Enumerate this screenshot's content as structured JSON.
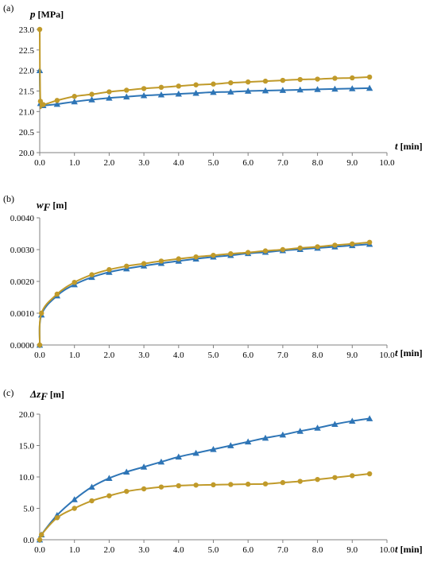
{
  "colors": {
    "series_tri": "#2E75B6",
    "series_dot": "#C09A2A",
    "axis": "#808080"
  },
  "chart_data": [
    {
      "type": "line",
      "panel_label": "(a)",
      "ylabel_var": "p",
      "ylabel_sub": "",
      "ylabel_unit": "[MPa]",
      "xlabel_var": "t",
      "xlabel_unit": "[min]",
      "ylim": [
        20.0,
        23.0
      ],
      "yticks": [
        "20.0",
        "20.5",
        "21.0",
        "21.5",
        "22.0",
        "22.5",
        "23.0"
      ],
      "xlim": [
        0,
        10
      ],
      "xticks": [
        "0.0",
        "1.0",
        "2.0",
        "3.0",
        "4.0",
        "5.0",
        "6.0",
        "7.0",
        "8.0",
        "9.0",
        "10.0"
      ],
      "series": [
        {
          "marker": "triangle",
          "x": [
            0,
            0.02,
            0.1,
            0.5,
            1.0,
            1.5,
            2.0,
            2.5,
            3.0,
            3.5,
            4.0,
            4.5,
            5.0,
            5.5,
            6.0,
            6.5,
            7.0,
            7.5,
            8.0,
            8.5,
            9.0,
            9.5
          ],
          "y": [
            22.0,
            21.2,
            21.15,
            21.18,
            21.24,
            21.29,
            21.33,
            21.36,
            21.39,
            21.41,
            21.43,
            21.45,
            21.47,
            21.48,
            21.5,
            21.51,
            21.52,
            21.53,
            21.54,
            21.55,
            21.56,
            21.57
          ]
        },
        {
          "marker": "circle",
          "x": [
            0,
            0.02,
            0.1,
            0.5,
            1.0,
            1.5,
            2.0,
            2.5,
            3.0,
            3.5,
            4.0,
            4.5,
            5.0,
            5.5,
            6.0,
            6.5,
            7.0,
            7.5,
            8.0,
            8.5,
            9.0,
            9.5
          ],
          "y": [
            23.0,
            21.25,
            21.17,
            21.27,
            21.37,
            21.42,
            21.48,
            21.52,
            21.56,
            21.59,
            21.62,
            21.65,
            21.67,
            21.7,
            21.72,
            21.74,
            21.76,
            21.78,
            21.79,
            21.81,
            21.82,
            21.84
          ]
        }
      ]
    },
    {
      "type": "line",
      "panel_label": "(b)",
      "ylabel_var": "w",
      "ylabel_sub": "F",
      "ylabel_unit": "[m]",
      "xlabel_var": "t",
      "xlabel_unit": "[min]",
      "ylim": [
        0,
        0.004
      ],
      "yticks": [
        "0.0000",
        "0.0010",
        "0.0020",
        "0.0030",
        "0.0040"
      ],
      "xlim": [
        0,
        10
      ],
      "xticks": [
        "0.0",
        "1.0",
        "2.0",
        "3.0",
        "4.0",
        "5.0",
        "6.0",
        "7.0",
        "8.0",
        "9.0",
        "10.0"
      ],
      "series": [
        {
          "marker": "triangle",
          "x": [
            0,
            0.05,
            0.5,
            1.0,
            1.5,
            2.0,
            2.5,
            3.0,
            3.5,
            4.0,
            4.5,
            5.0,
            5.5,
            6.0,
            6.5,
            7.0,
            7.5,
            8.0,
            8.5,
            9.0,
            9.5
          ],
          "y": [
            0,
            0.00095,
            0.00155,
            0.0019,
            0.00213,
            0.00229,
            0.0024,
            0.00249,
            0.00257,
            0.00264,
            0.00271,
            0.00277,
            0.00282,
            0.00288,
            0.00292,
            0.00297,
            0.00301,
            0.00305,
            0.00309,
            0.00313,
            0.00317
          ]
        },
        {
          "marker": "circle",
          "x": [
            0,
            0.05,
            0.5,
            1.0,
            1.5,
            2.0,
            2.5,
            3.0,
            3.5,
            4.0,
            4.5,
            5.0,
            5.5,
            6.0,
            6.5,
            7.0,
            7.5,
            8.0,
            8.5,
            9.0,
            9.5
          ],
          "y": [
            0,
            0.001,
            0.0016,
            0.00197,
            0.00221,
            0.00237,
            0.00248,
            0.00256,
            0.00264,
            0.00271,
            0.00277,
            0.00282,
            0.00287,
            0.00291,
            0.00296,
            0.003,
            0.00305,
            0.00309,
            0.00314,
            0.00318,
            0.00323
          ]
        }
      ]
    },
    {
      "type": "line",
      "panel_label": "(c)",
      "ylabel_var": "Δz",
      "ylabel_sub": "F",
      "ylabel_unit": "[m]",
      "xlabel_var": "t",
      "xlabel_unit": "[min]",
      "ylim": [
        0,
        20.0
      ],
      "yticks": [
        "0.0",
        "5.0",
        "10.0",
        "15.0",
        "20.0"
      ],
      "xlim": [
        0,
        10
      ],
      "xticks": [
        "0.0",
        "1.0",
        "2.0",
        "3.0",
        "4.0",
        "5.0",
        "6.0",
        "7.0",
        "8.0",
        "9.0",
        "10.0"
      ],
      "series": [
        {
          "marker": "triangle",
          "x": [
            0,
            0.05,
            0.5,
            1.0,
            1.5,
            2.0,
            2.5,
            3.0,
            3.5,
            4.0,
            4.5,
            5.0,
            5.5,
            6.0,
            6.5,
            7.0,
            7.5,
            8.0,
            8.5,
            9.0,
            9.5
          ],
          "y": [
            0,
            0.8,
            3.9,
            6.4,
            8.4,
            9.8,
            10.8,
            11.6,
            12.4,
            13.2,
            13.8,
            14.4,
            15.0,
            15.6,
            16.2,
            16.7,
            17.3,
            17.8,
            18.4,
            18.9,
            19.3
          ]
        },
        {
          "marker": "circle",
          "x": [
            0,
            0.05,
            0.5,
            1.0,
            1.5,
            2.0,
            2.5,
            3.0,
            3.5,
            4.0,
            4.5,
            5.0,
            5.5,
            6.0,
            6.5,
            7.0,
            7.5,
            8.0,
            8.5,
            9.0,
            9.5
          ],
          "y": [
            0,
            0.8,
            3.5,
            5.0,
            6.2,
            7.0,
            7.7,
            8.1,
            8.4,
            8.6,
            8.7,
            8.75,
            8.8,
            8.85,
            8.9,
            9.1,
            9.3,
            9.6,
            9.9,
            10.2,
            10.5
          ]
        }
      ]
    }
  ]
}
